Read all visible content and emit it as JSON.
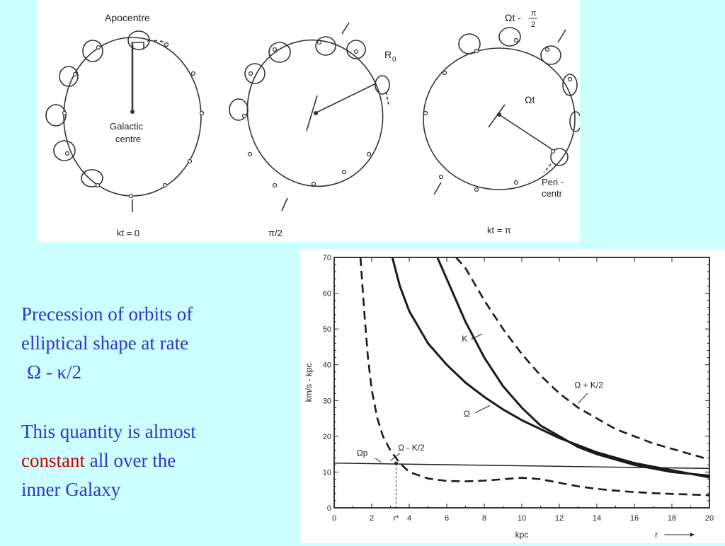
{
  "orbits": {
    "labels": {
      "apocentre": "Apocentre",
      "galactic_centre_1": "Galactic",
      "galactic_centre_2": "centre",
      "r0": "R",
      "r0_sub": "0",
      "omega_t": "Ωt",
      "omega_t_minus": "Ωt -",
      "pi_num": "π",
      "pi_den": "2",
      "pericentre_1": "Peri -",
      "pericentre_2": "centr",
      "kt0": "kt = 0",
      "pi_half": "π/2",
      "kt_pi": "kt = π"
    }
  },
  "caption": {
    "line1": "Precession of orbits of",
    "line2": "elliptical shape at rate",
    "line3": "Ω - κ/2",
    "line4": "This quantity is almost",
    "line5_red": "constant",
    "line5_rest": " all over the",
    "line6": "inner Galaxy"
  },
  "chart_data": {
    "type": "line",
    "xlabel": "kpc",
    "ylabel": "km/s - kpc",
    "x_extra_label": "r",
    "x_ticks": [
      "0",
      "2",
      "r*",
      "4",
      "6",
      "8",
      "10",
      "12",
      "14",
      "16",
      "18",
      "20"
    ],
    "y_ticks": [
      "0",
      "10",
      "20",
      "30",
      "40",
      "50",
      "60",
      "70"
    ],
    "xlim": [
      0,
      20
    ],
    "ylim": [
      0,
      70
    ],
    "grid": false,
    "curve_labels": {
      "kappa": "K",
      "omega": "Ω",
      "omega_plus": "Ω + K/2",
      "omega_minus": "Ω - K/2",
      "omega_p": "Ωp"
    },
    "series": [
      {
        "name": "K",
        "style": "solid",
        "x": [
          5.5,
          6,
          7,
          8,
          9,
          10,
          11,
          12,
          13,
          14,
          15,
          16,
          17,
          18,
          19,
          20
        ],
        "y": [
          70,
          64,
          52,
          42,
          34,
          28,
          23,
          20,
          17,
          15,
          13.5,
          12,
          11,
          10,
          9.5,
          9
        ]
      },
      {
        "name": "Ω",
        "style": "solid",
        "x": [
          3.1,
          3.5,
          4,
          5,
          6,
          7,
          8,
          9,
          10,
          11,
          12,
          13,
          14,
          15,
          16,
          17,
          18,
          19,
          20
        ],
        "y": [
          70,
          62,
          55,
          46,
          40,
          35,
          31,
          27.5,
          24.5,
          22,
          19.5,
          17.5,
          15.5,
          14,
          12.5,
          11.5,
          10.5,
          9.5,
          8.5
        ]
      },
      {
        "name": "Ω + K/2",
        "style": "dashed",
        "x": [
          6.5,
          7,
          8,
          9,
          10,
          11,
          12,
          13,
          14,
          15,
          16,
          17,
          18,
          19,
          20
        ],
        "y": [
          70,
          67,
          58,
          50,
          43,
          37,
          32,
          28,
          25,
          22,
          20,
          18,
          16.5,
          15,
          13.5
        ]
      },
      {
        "name": "Ω - K/2",
        "style": "dashed",
        "x": [
          1.4,
          1.6,
          1.8,
          2,
          2.3,
          2.6,
          3,
          3.5,
          4,
          5,
          6,
          7,
          8,
          9,
          10,
          11,
          12,
          13,
          14,
          15,
          16,
          17,
          18,
          19,
          20
        ],
        "y": [
          70,
          55,
          42,
          33,
          25,
          20,
          16,
          12.5,
          10,
          8.2,
          7.5,
          7.4,
          7.6,
          8,
          8.4,
          8,
          7,
          6,
          5.3,
          4.8,
          4.4,
          4.1,
          3.9,
          3.7,
          3.5
        ]
      },
      {
        "name": "Ωp",
        "style": "solid-thin",
        "x": [
          0,
          20
        ],
        "y": [
          12.5,
          11
        ]
      }
    ],
    "markers": {
      "r_star": 3.3,
      "r_star_y": 12.4
    }
  },
  "colors": {
    "background": "#ccffff",
    "caption_text": "#3333cc",
    "highlight": "#cc0000"
  }
}
